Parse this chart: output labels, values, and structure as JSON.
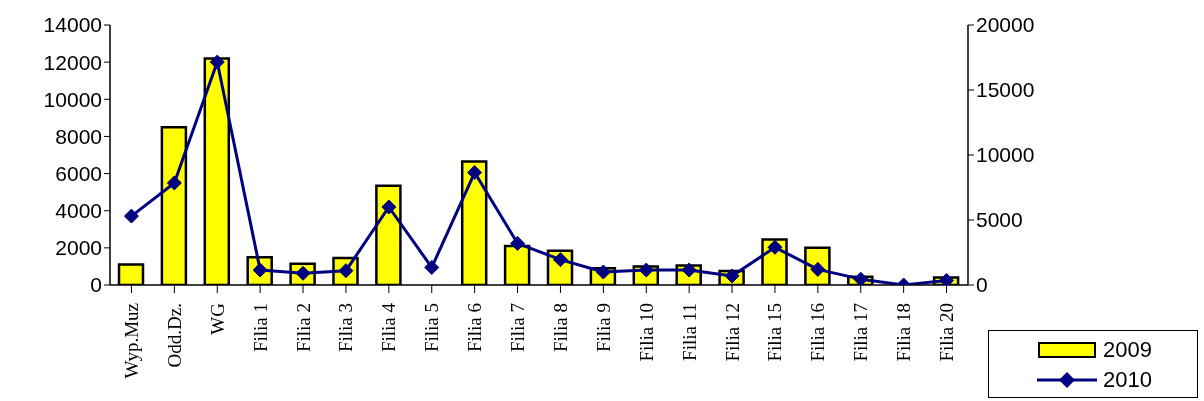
{
  "chart_data": {
    "type": "bar",
    "categories": [
      "Wyp.Muz",
      "Odd.Dz.",
      "WG",
      "Filia  1",
      "Filia  2",
      "Filia  3",
      "Filia  4",
      "Filia  5",
      "Filia  6",
      "Filia  7",
      "Filia  8",
      "Filia  9",
      "Filia 10",
      "Filia 11",
      "Filia 12",
      "Filia 15",
      "Filia 16",
      "Filia 17",
      "Filia 18",
      "Filia 20"
    ],
    "series": [
      {
        "name": "2009",
        "color": "#ffff00",
        "values": [
          1100,
          8500,
          12200,
          1500,
          1150,
          1450,
          5350,
          null,
          6650,
          2100,
          1850,
          900,
          1000,
          1050,
          750,
          2450,
          2000,
          450,
          null,
          400
        ]
      },
      {
        "name": "2010",
        "type": "line",
        "axis": "y2",
        "color": "#000080",
        "marker": "diamond",
        "values": [
          5300,
          7850,
          17150,
          1150,
          900,
          1100,
          6000,
          1350,
          8650,
          3200,
          1950,
          1000,
          1150,
          1150,
          700,
          2900,
          1200,
          450,
          0,
          350
        ]
      }
    ],
    "ylim": [
      0,
      14000
    ],
    "yticks": [
      0,
      2000,
      4000,
      6000,
      8000,
      10000,
      12000,
      14000
    ],
    "y2lim": [
      0,
      20000
    ],
    "y2ticks": [
      0,
      5000,
      10000,
      15000,
      20000
    ],
    "grid": false,
    "legend": "bottom right"
  }
}
